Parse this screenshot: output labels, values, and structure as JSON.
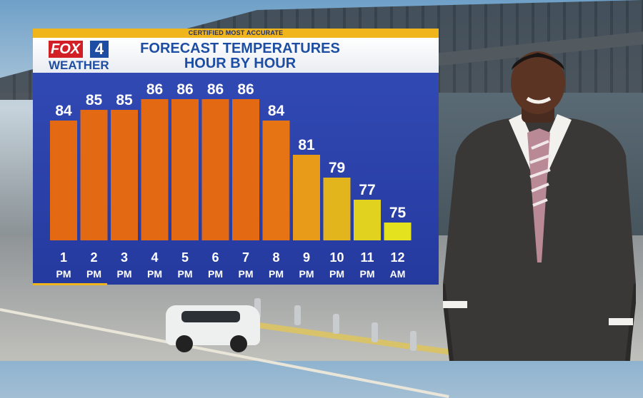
{
  "banner": {
    "text": "CERTIFIED MOST ACCURATE"
  },
  "logo": {
    "fox": "FOX",
    "number": "4",
    "weather": "WEATHER"
  },
  "title": {
    "line1": "FORECAST TEMPERATURES",
    "line2": "HOUR BY HOUR"
  },
  "colors": {
    "accent_gold": "#f1b51c",
    "brand_blue": "#1d4ea3",
    "fox_red": "#d21f26"
  },
  "chart_data": {
    "type": "bar",
    "categories": [
      [
        "1",
        "PM"
      ],
      [
        "2",
        "PM"
      ],
      [
        "3",
        "PM"
      ],
      [
        "4",
        "PM"
      ],
      [
        "5",
        "PM"
      ],
      [
        "6",
        "PM"
      ],
      [
        "7",
        "PM"
      ],
      [
        "8",
        "PM"
      ],
      [
        "9",
        "PM"
      ],
      [
        "10",
        "PM"
      ],
      [
        "11",
        "PM"
      ],
      [
        "12",
        "AM"
      ]
    ],
    "values": [
      84,
      85,
      85,
      86,
      86,
      86,
      86,
      84,
      81,
      79,
      77,
      75
    ],
    "bar_colors": [
      "#e36a12",
      "#e36a12",
      "#e36a12",
      "#e36a12",
      "#e36a12",
      "#e36a12",
      "#e36a12",
      "#e67414",
      "#e89b18",
      "#e3b51c",
      "#e0d21e",
      "#e4e11e"
    ],
    "title": "FORECAST TEMPERATURES HOUR BY HOUR",
    "xlabel": "",
    "ylabel": "",
    "ylim": [
      70,
      87
    ],
    "grid": false,
    "data_labels": true
  }
}
